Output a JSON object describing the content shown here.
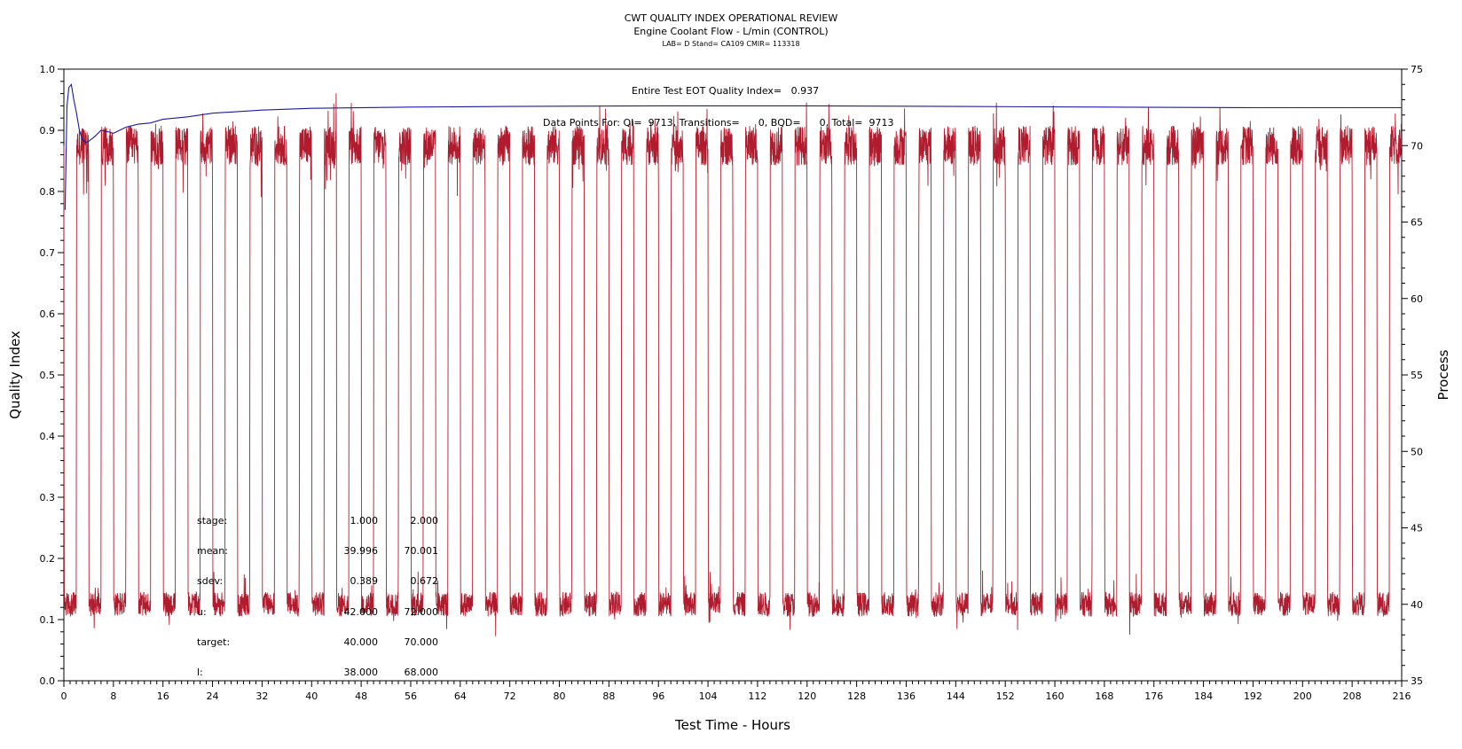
{
  "chart_data": {
    "type": "line",
    "title": "CWT QUALITY INDEX OPERATIONAL REVIEW",
    "subtitle": "Engine Coolant Flow - L/min (CONTROL)",
    "meta": "LAB= D Stand= CA109 CMIR= 113318",
    "xlabel": "Test Time - Hours",
    "ylabel_left": "Quality Index",
    "ylabel_right": "Process",
    "xlim": [
      0,
      216
    ],
    "ylim_left": [
      0.0,
      1.0
    ],
    "ylim_right": [
      35,
      75
    ],
    "x_ticks": [
      "0",
      "8",
      "16",
      "24",
      "32",
      "40",
      "48",
      "56",
      "64",
      "72",
      "80",
      "88",
      "96",
      "104",
      "112",
      "120",
      "128",
      "136",
      "144",
      "152",
      "160",
      "168",
      "176",
      "184",
      "192",
      "200",
      "208",
      "216"
    ],
    "y_left_ticks": [
      "0.0",
      "0.1",
      "0.2",
      "0.3",
      "0.4",
      "0.5",
      "0.6",
      "0.7",
      "0.8",
      "0.9",
      "1.0"
    ],
    "y_right_ticks": [
      "35",
      "40",
      "45",
      "50",
      "55",
      "60",
      "65",
      "70",
      "75"
    ],
    "grid": false,
    "annotations": {
      "eot": "Entire Test EOT Quality Index=   0.937",
      "points": "Data Points For: QI=  9713, Transitions=      0, BQD=      0, Total=  9713"
    },
    "stats": {
      "rows": [
        {
          "label": "stage:",
          "v1": "1.000",
          "v2": "2.000"
        },
        {
          "label": "mean:",
          "v1": "39.996",
          "v2": "70.001"
        },
        {
          "label": "sdev:",
          "v1": "0.389",
          "v2": "0.672"
        },
        {
          "label": "u:",
          "v1": "42.000",
          "v2": "72.000"
        },
        {
          "label": "target:",
          "v1": "40.000",
          "v2": "70.000"
        },
        {
          "label": "l:",
          "v1": "38.000",
          "v2": "68.000"
        }
      ]
    },
    "series": [
      {
        "axis": "left",
        "color": "#1a1aa6",
        "x": [
          0.2,
          0.5,
          0.8,
          1.2,
          1.6,
          2.0,
          2.5,
          3.0,
          3.5,
          4.0,
          5.0,
          6.0,
          7.0,
          8.0,
          9.0,
          10.0,
          12.0,
          14.0,
          16.0,
          20.0,
          24.0,
          32.0,
          40.0,
          56.0,
          72.0,
          96.0,
          120.0,
          144.0,
          168.0,
          192.0,
          216.0
        ],
        "y": [
          0.77,
          0.94,
          0.97,
          0.975,
          0.95,
          0.93,
          0.9,
          0.885,
          0.88,
          0.882,
          0.89,
          0.9,
          0.898,
          0.895,
          0.9,
          0.905,
          0.91,
          0.912,
          0.918,
          0.922,
          0.928,
          0.933,
          0.936,
          0.938,
          0.939,
          0.94,
          0.94,
          0.939,
          0.938,
          0.937,
          0.937
        ]
      },
      {
        "axis": "right",
        "color": "#b01c2e",
        "pattern": "alternating 2-hour stages",
        "stage_hours": 2,
        "levels": [
          40,
          70
        ]
      }
    ]
  }
}
